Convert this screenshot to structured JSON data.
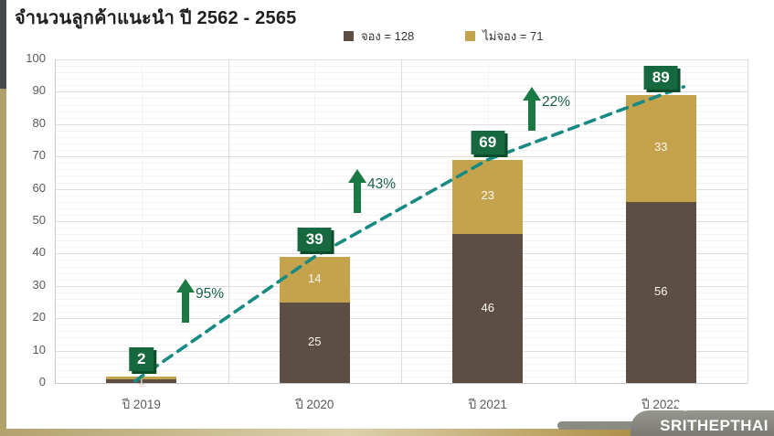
{
  "title": "จำนวนลูกค้าแนะนำ ปี 2562 - 2565",
  "legend": [
    {
      "label": "จอง = 128",
      "color": "#5c4e43"
    },
    {
      "label": "ไม่จอง = 71",
      "color": "#c5a34d"
    }
  ],
  "logo": {
    "text": "SRITHEPTHAI",
    "icon": "leaf-icon"
  },
  "colors": {
    "booked": "#5c4e43",
    "not_booked": "#c5a34d",
    "badge_green": "#16693e",
    "badge_shadow": "#0b4c2a",
    "arrow_green": "#1b7a43",
    "trend_teal": "#178a84",
    "axis_text": "#5a5a5a"
  },
  "chart_data": {
    "type": "bar",
    "stacked": true,
    "title": "จำนวนลูกค้าแนะนำ ปี 2562 - 2565",
    "categories": [
      "ปี 2019",
      "ปี 2020",
      "ปี 2021",
      "ปี 2022"
    ],
    "series": [
      {
        "name": "จอง",
        "total": 128,
        "color": "#5c4e43",
        "values": [
          1,
          25,
          46,
          56
        ]
      },
      {
        "name": "ไม่จอง",
        "total": 71,
        "color": "#c5a34d",
        "values": [
          1,
          14,
          23,
          33
        ]
      }
    ],
    "totals": [
      2,
      39,
      69,
      89
    ],
    "growth_labels": [
      "95%",
      "43%",
      "22%"
    ],
    "trend_line": true,
    "xlabel": "",
    "ylabel": "",
    "ylim": [
      0,
      100
    ],
    "y_ticks": [
      0,
      10,
      20,
      30,
      40,
      50,
      60,
      70,
      80,
      90,
      100
    ],
    "minor_grid_step": 2,
    "grid": true,
    "legend_position": "top"
  }
}
